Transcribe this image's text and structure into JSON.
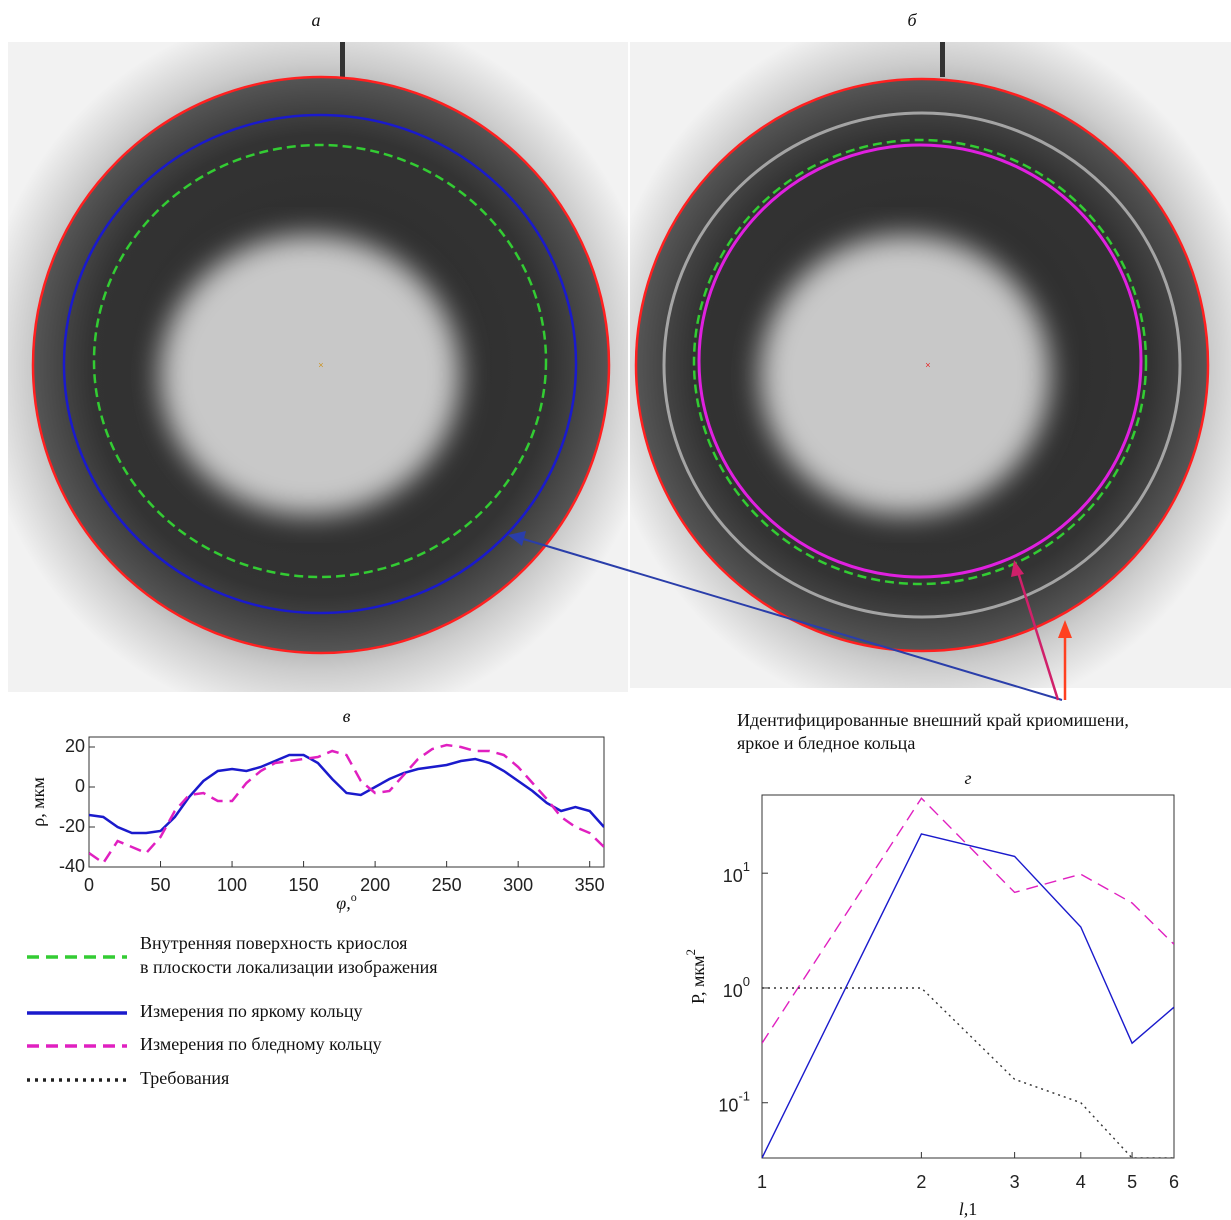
{
  "panel_labels": {
    "a": "а",
    "b": "б"
  },
  "annotation": [
    "Идентифицированные  внешний край криомишени,",
    "яркое и бледное кольца"
  ],
  "legend": [
    {
      "lines": [
        "Внутренняя поверхность криослоя",
        "в плоскости локализации изображения"
      ],
      "color": "#33cc33",
      "style": "dashed"
    },
    {
      "lines": [
        "Измерения по яркому кольцу"
      ],
      "color": "#1a1acc",
      "style": "solid"
    },
    {
      "lines": [
        "Измерения по бледному кольцу"
      ],
      "color": "#e020c0",
      "style": "dashed"
    },
    {
      "lines": [
        "Требования"
      ],
      "color": "#222222",
      "style": "dotted"
    }
  ],
  "chart_data": [
    {
      "type": "line",
      "title": "в",
      "xlabel": {
        "text": "φ,",
        "sup": "о"
      },
      "ylabel": "ρ,  мкм",
      "x": [
        0,
        10,
        20,
        30,
        40,
        50,
        60,
        70,
        80,
        90,
        100,
        110,
        120,
        130,
        140,
        150,
        160,
        170,
        180,
        190,
        200,
        210,
        220,
        230,
        240,
        250,
        260,
        270,
        280,
        290,
        300,
        310,
        320,
        330,
        340,
        350,
        360
      ],
      "series": [
        {
          "color": "#1a1acc",
          "style": "solid",
          "values": [
            -14,
            -15,
            -20,
            -23,
            -23,
            -22,
            -15,
            -5,
            3,
            8,
            9,
            8,
            10,
            13,
            16,
            16,
            12,
            4,
            -3,
            -4,
            0,
            4,
            7,
            9,
            10,
            11,
            13,
            14,
            12,
            8,
            3,
            -2,
            -8,
            -12,
            -10,
            -12,
            -20
          ]
        },
        {
          "color": "#e020c0",
          "style": "dashed",
          "values": [
            -33,
            -38,
            -27,
            -30,
            -33,
            -25,
            -12,
            -4,
            -3,
            -7,
            -7,
            2,
            8,
            12,
            13,
            14,
            15,
            18,
            16,
            3,
            -3,
            -2,
            6,
            14,
            19,
            21,
            20,
            18,
            18,
            16,
            10,
            2,
            -6,
            -15,
            -20,
            -23,
            -30
          ]
        }
      ],
      "xlim": [
        0,
        360
      ],
      "xticks": [
        0,
        50,
        100,
        150,
        200,
        250,
        300,
        350
      ],
      "ylim": [
        -40,
        25
      ],
      "yticks": [
        -40,
        -20,
        0,
        20
      ]
    },
    {
      "type": "line",
      "title": "г",
      "xlabel": {
        "text": "l,",
        "sup": "1"
      },
      "ylabel": {
        "text": "P,  мкм",
        "sup": "2"
      },
      "xscale": "log",
      "yscale": "log",
      "x": [
        1,
        2,
        3,
        4,
        5,
        6
      ],
      "series": [
        {
          "color": "#1a1acc",
          "style": "solid",
          "values": [
            0.033,
            22,
            14,
            3.4,
            0.33,
            0.68
          ]
        },
        {
          "color": "#e020c0",
          "style": "dashed",
          "values": [
            0.33,
            45,
            6.8,
            9.8,
            5.5,
            2.4
          ]
        },
        {
          "color": "#333333",
          "style": "dotted",
          "values": [
            1,
            1,
            0.16,
            0.1,
            0.033,
            0.033
          ]
        }
      ],
      "xlim": [
        1,
        6
      ],
      "xticks": [
        1,
        2,
        3,
        4,
        5,
        6
      ],
      "ylim": [
        0.033,
        48
      ],
      "yticks": [
        {
          "value": 0.1,
          "label": "10",
          "exponent": "-1"
        },
        {
          "value": 1,
          "label": "10",
          "exponent": "0"
        },
        {
          "value": 10,
          "label": "10",
          "exponent": "1"
        }
      ]
    }
  ]
}
